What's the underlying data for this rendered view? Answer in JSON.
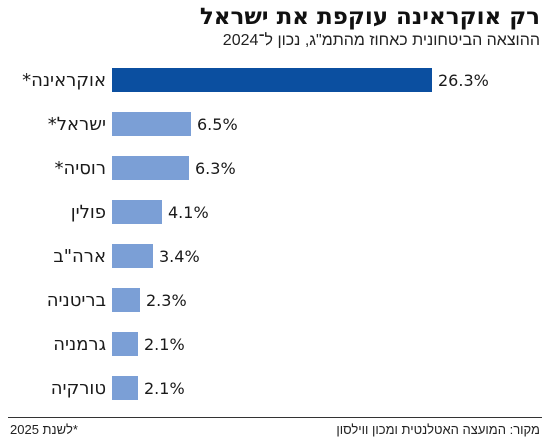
{
  "chart_data": {
    "type": "bar",
    "orientation": "horizontal",
    "title": "רק אוקראינה עוקפת את ישראל",
    "subtitle": "ההוצאה הביטחונית כאחוז מהתמ\"ג, נכון ל־2024",
    "categories": [
      "אוקראינה*",
      "ישראל*",
      "רוסיה*",
      "פולין",
      "ארה\"ב",
      "בריטניה",
      "גרמניה",
      "טורקיה"
    ],
    "values": [
      26.3,
      6.5,
      6.3,
      4.1,
      3.4,
      2.3,
      2.1,
      2.1
    ],
    "value_labels": [
      "26.3%",
      "6.5%",
      "6.3%",
      "4.1%",
      "3.4%",
      "2.3%",
      "2.1%",
      "2.1%"
    ],
    "highlight_index": 0,
    "colors": {
      "highlight": "#0b4fa0",
      "bar": "#7b9fd6"
    },
    "legend": "none",
    "grid": false
  },
  "footer": {
    "source": "מקור: המועצה האטלנטית ומכון ווילסון",
    "note": "*לשנת 2025"
  }
}
